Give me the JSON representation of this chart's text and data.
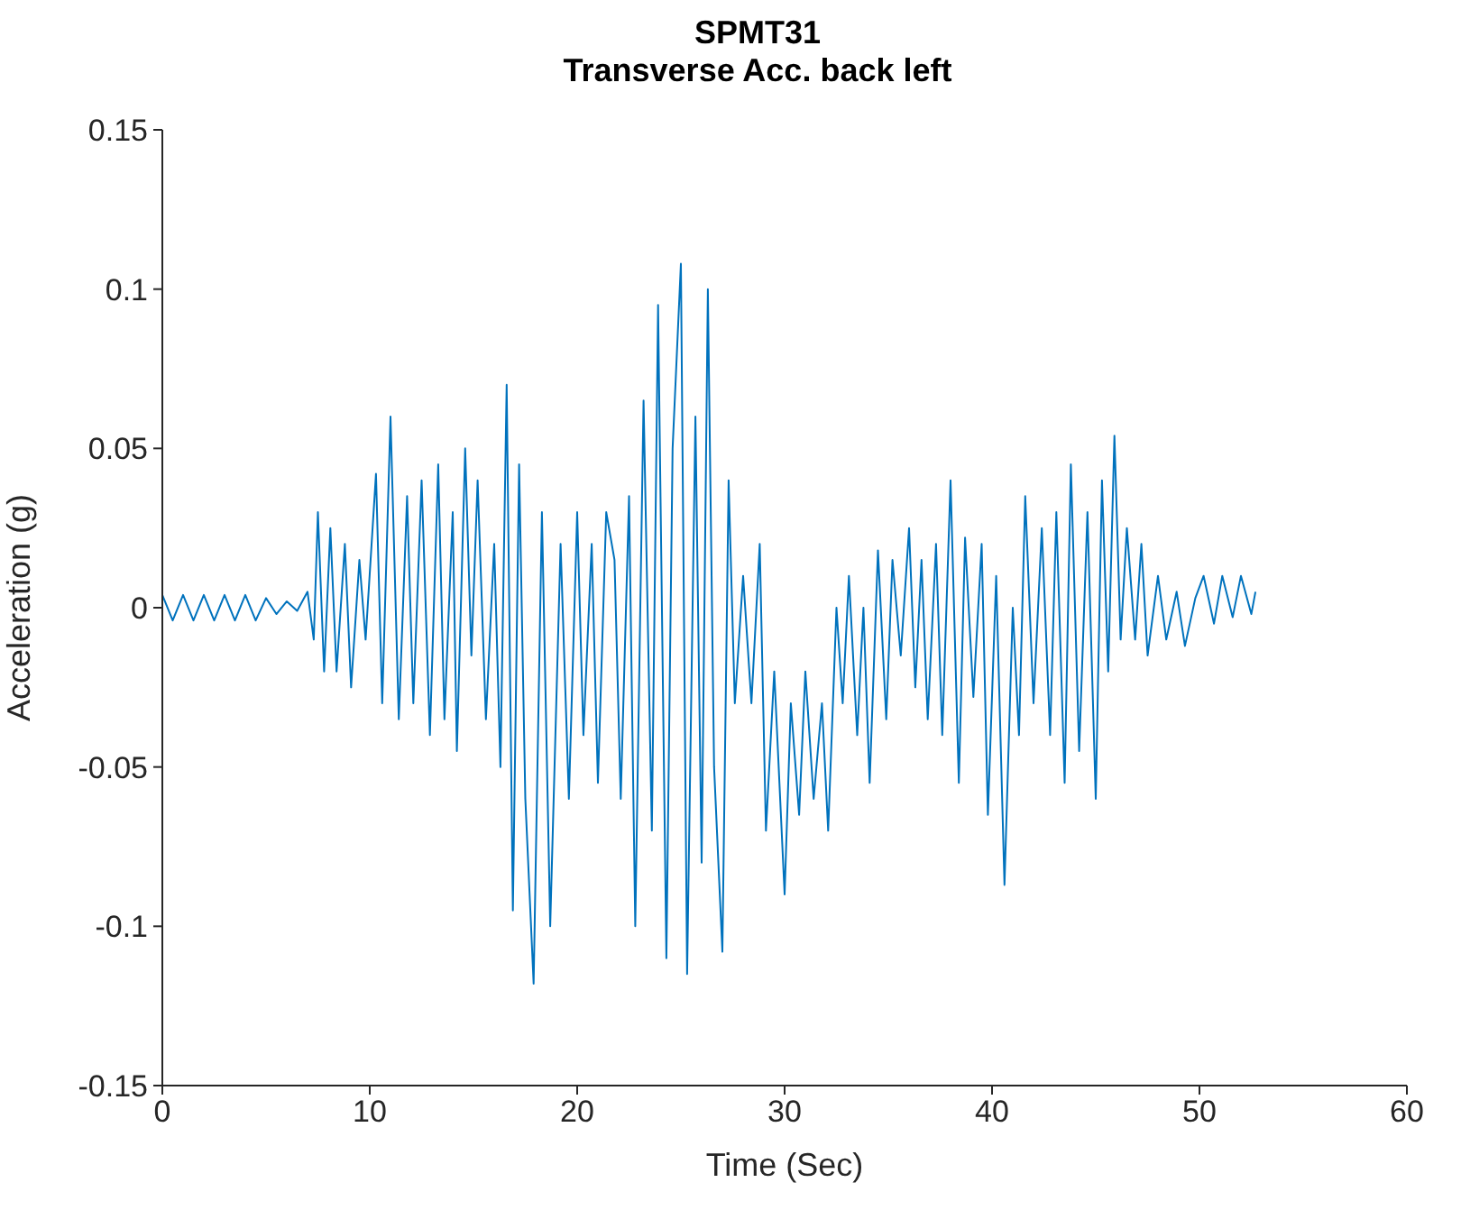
{
  "chart_data": {
    "type": "line",
    "title": "SPMT31",
    "subtitle": "Transverse Acc. back left",
    "xlabel": "Time (Sec)",
    "ylabel": "Acceleration (g)",
    "xlim": [
      0,
      60
    ],
    "xticks": [
      0,
      10,
      20,
      30,
      40,
      50,
      60
    ],
    "ylim": [
      -0.15,
      0.15
    ],
    "yticks": [
      -0.15,
      -0.1,
      -0.05,
      0,
      0.05,
      0.1,
      0.15
    ],
    "grid": false,
    "marker": "none",
    "line_style": "solid",
    "series": [
      {
        "color": "#0072bd",
        "x": [
          0,
          0.5,
          1,
          1.5,
          2,
          2.5,
          3,
          3.5,
          4,
          4.5,
          5,
          5.5,
          6,
          6.5,
          7,
          7.3,
          7.5,
          7.8,
          8.1,
          8.4,
          8.8,
          9.1,
          9.5,
          9.8,
          10.3,
          10.6,
          11.0,
          11.4,
          11.8,
          12.1,
          12.5,
          12.9,
          13.3,
          13.6,
          14.0,
          14.2,
          14.6,
          14.9,
          15.2,
          15.6,
          16.0,
          16.3,
          16.6,
          16.9,
          17.2,
          17.5,
          17.9,
          18.3,
          18.7,
          19.2,
          19.6,
          20.0,
          20.3,
          20.7,
          21.0,
          21.4,
          21.8,
          22.1,
          22.5,
          22.8,
          23.2,
          23.6,
          23.9,
          24.3,
          24.6,
          25.0,
          25.3,
          25.7,
          26.0,
          26.3,
          26.6,
          27.0,
          27.3,
          27.6,
          28.0,
          28.4,
          28.8,
          29.1,
          29.5,
          30.0,
          30.3,
          30.7,
          31.0,
          31.4,
          31.8,
          32.1,
          32.5,
          32.8,
          33.1,
          33.5,
          33.8,
          34.1,
          34.5,
          34.9,
          35.2,
          35.6,
          36.0,
          36.3,
          36.6,
          36.9,
          37.3,
          37.6,
          38.0,
          38.4,
          38.7,
          39.1,
          39.5,
          39.8,
          40.2,
          40.6,
          41.0,
          41.3,
          41.6,
          42.0,
          42.4,
          42.8,
          43.1,
          43.5,
          43.8,
          44.2,
          44.6,
          45.0,
          45.3,
          45.6,
          45.9,
          46.2,
          46.5,
          46.9,
          47.2,
          47.5,
          48.0,
          48.4,
          48.9,
          49.3,
          49.8,
          50.2,
          50.7,
          51.1,
          51.6,
          52.0,
          52.5,
          52.7
        ],
        "values": [
          0.004,
          -0.004,
          0.004,
          -0.004,
          0.004,
          -0.004,
          0.004,
          -0.004,
          0.004,
          -0.004,
          0.003,
          -0.002,
          0.002,
          -0.001,
          0.005,
          -0.01,
          0.03,
          -0.02,
          0.025,
          -0.02,
          0.02,
          -0.025,
          0.015,
          -0.01,
          0.042,
          -0.03,
          0.06,
          -0.035,
          0.035,
          -0.03,
          0.04,
          -0.04,
          0.045,
          -0.035,
          0.03,
          -0.045,
          0.05,
          -0.015,
          0.04,
          -0.035,
          0.02,
          -0.05,
          0.07,
          -0.095,
          0.045,
          -0.06,
          -0.118,
          0.03,
          -0.1,
          0.02,
          -0.06,
          0.03,
          -0.04,
          0.02,
          -0.055,
          0.03,
          0.015,
          -0.06,
          0.035,
          -0.1,
          0.065,
          -0.07,
          0.095,
          -0.11,
          0.05,
          0.108,
          -0.115,
          0.06,
          -0.08,
          0.1,
          -0.05,
          -0.108,
          0.04,
          -0.03,
          0.01,
          -0.03,
          0.02,
          -0.07,
          -0.02,
          -0.09,
          -0.03,
          -0.065,
          -0.02,
          -0.06,
          -0.03,
          -0.07,
          0.0,
          -0.03,
          0.01,
          -0.04,
          0.0,
          -0.055,
          0.018,
          -0.035,
          0.015,
          -0.015,
          0.025,
          -0.025,
          0.015,
          -0.035,
          0.02,
          -0.04,
          0.04,
          -0.055,
          0.022,
          -0.028,
          0.02,
          -0.065,
          0.01,
          -0.087,
          0.0,
          -0.04,
          0.035,
          -0.03,
          0.025,
          -0.04,
          0.03,
          -0.055,
          0.045,
          -0.045,
          0.03,
          -0.06,
          0.04,
          -0.02,
          0.054,
          -0.01,
          0.025,
          -0.01,
          0.02,
          -0.015,
          0.01,
          -0.01,
          0.005,
          -0.012,
          0.003,
          0.01,
          -0.005,
          0.01,
          -0.003,
          0.01,
          -0.002,
          0.005
        ]
      }
    ]
  }
}
